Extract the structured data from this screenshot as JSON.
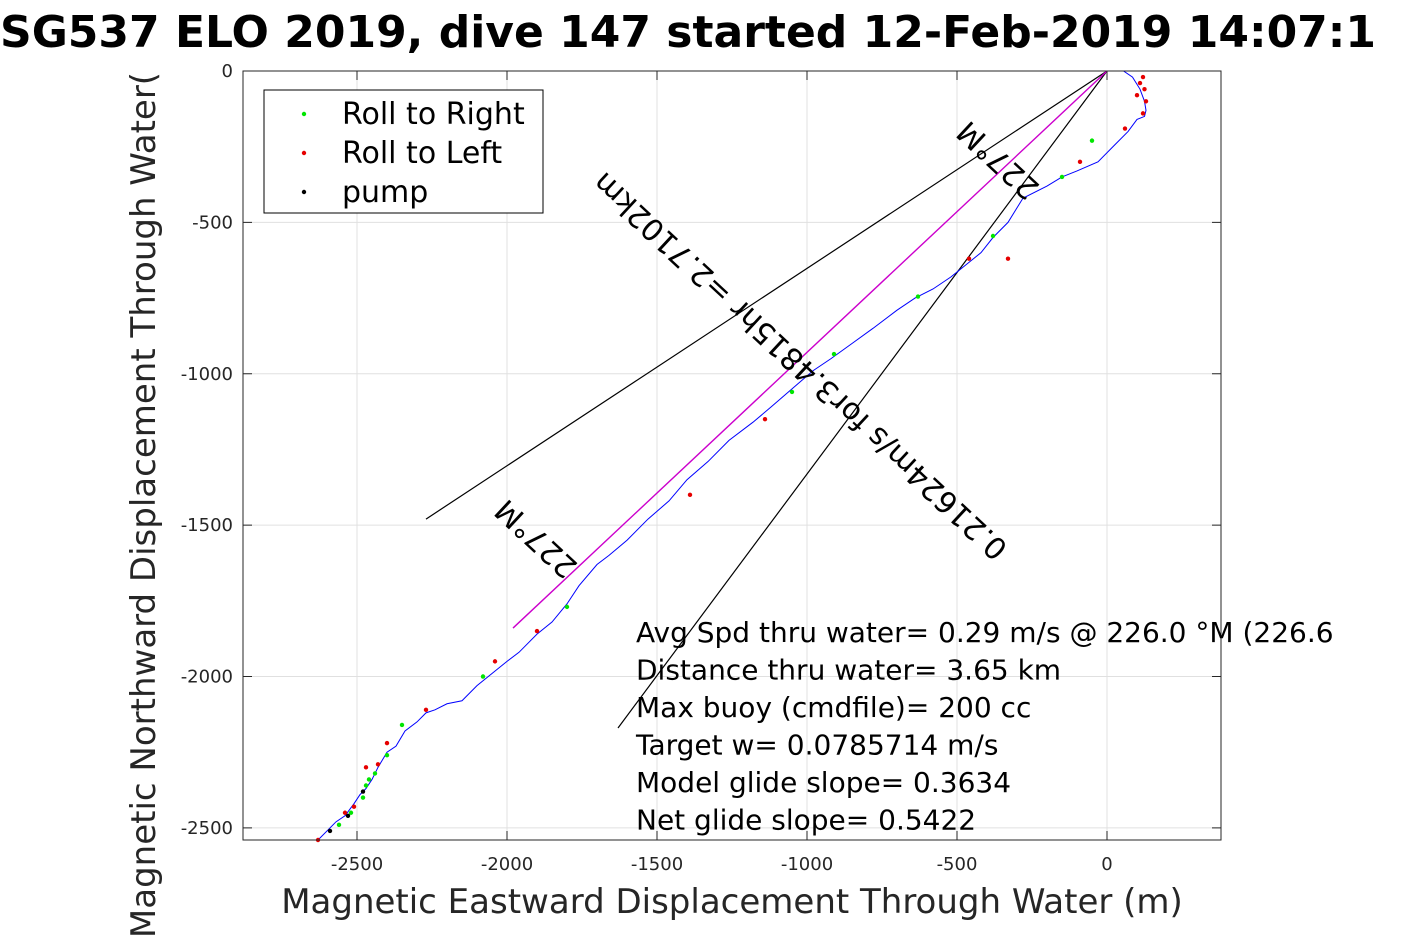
{
  "chart_data": {
    "type": "scatter",
    "title": "SG537 ELO 2019, dive 147 started 12-Feb-2019 14:07:1",
    "xlabel": "Magnetic Eastward Displacement Through Water (m)",
    "ylabel": "Magnetic Northward Displacement Through Water(",
    "xlim": [
      -2880,
      380
    ],
    "ylim": [
      -2540,
      0
    ],
    "xticks": [
      -2500,
      -2000,
      -1500,
      -1000,
      -500,
      0
    ],
    "yticks": [
      0,
      -500,
      -1000,
      -1500,
      -2000,
      -2500
    ],
    "xtick_labels": [
      "-2500",
      "-2000",
      "-1500",
      "-1000",
      "-500",
      "0"
    ],
    "ytick_labels": [
      "0",
      "-500",
      "-1000",
      "-1500",
      "-2000",
      "-2500"
    ],
    "grid": true,
    "legend_position": "top-left",
    "legend": [
      {
        "label": "Roll to Right",
        "color": "#00e600"
      },
      {
        "label": "Roll to Left",
        "color": "#e60000"
      },
      {
        "label": "pump",
        "color": "#000000"
      }
    ],
    "track": {
      "name": "track",
      "color": "#0000ff",
      "x": [
        0,
        25,
        55,
        85,
        110,
        125,
        130,
        125,
        100,
        70,
        30,
        -30,
        -100,
        -150,
        -200,
        -280,
        -330,
        -380,
        -420,
        -470,
        -520,
        -580,
        -640,
        -700,
        -780,
        -850,
        -920,
        -980,
        -1050,
        -1120,
        -1180,
        -1260,
        -1330,
        -1400,
        -1460,
        -1530,
        -1600,
        -1660,
        -1700,
        -1760,
        -1800,
        -1850,
        -1900,
        -1960,
        -2000,
        -2050,
        -2100,
        -2150,
        -2200,
        -2240,
        -2270,
        -2300,
        -2340,
        -2370,
        -2400,
        -2430,
        -2450,
        -2470,
        -2490,
        -2510,
        -2540,
        -2570,
        -2600,
        -2630
      ],
      "y": [
        0,
        0,
        0,
        -20,
        -60,
        -100,
        -130,
        -150,
        -160,
        -200,
        -240,
        -300,
        -330,
        -350,
        -380,
        -420,
        -500,
        -550,
        -600,
        -640,
        -680,
        -720,
        -750,
        -790,
        -850,
        -900,
        -950,
        -990,
        -1050,
        -1110,
        -1160,
        -1220,
        -1290,
        -1350,
        -1420,
        -1480,
        -1550,
        -1600,
        -1630,
        -1700,
        -1760,
        -1820,
        -1860,
        -1920,
        -1950,
        -1990,
        -2030,
        -2080,
        -2090,
        -2110,
        -2120,
        -2150,
        -2180,
        -2230,
        -2250,
        -2300,
        -2340,
        -2370,
        -2390,
        -2420,
        -2460,
        -2480,
        -2510,
        -2540
      ]
    },
    "roll_right": {
      "x": [
        -50,
        -150,
        -380,
        -630,
        -910,
        -1050,
        -1800,
        -2080,
        -2350,
        -2400,
        -2440,
        -2460,
        -2470,
        -2480,
        -2520,
        -2560
      ],
      "y": [
        -230,
        -350,
        -545,
        -745,
        -935,
        -1060,
        -1770,
        -2000,
        -2160,
        -2260,
        -2320,
        -2340,
        -2360,
        -2400,
        -2450,
        -2490
      ]
    },
    "roll_left": {
      "x": [
        60,
        100,
        110,
        120,
        125,
        130,
        120,
        -90,
        -330,
        -460,
        -1140,
        -1390,
        -1900,
        -2040,
        -2270,
        -2400,
        -2430,
        -2470,
        -2510,
        -2540,
        -2630
      ],
      "y": [
        -190,
        -80,
        -40,
        -20,
        -60,
        -100,
        -140,
        -300,
        -620,
        -620,
        -1150,
        -1400,
        -1850,
        -1950,
        -2110,
        -2220,
        -2290,
        -2300,
        -2430,
        -2450,
        -2540
      ]
    },
    "pump": {
      "x": [
        -2480,
        -2530,
        -2590
      ],
      "y": [
        -2380,
        -2460,
        -2510
      ]
    },
    "fan_lines": [
      {
        "color": "#000000",
        "x": [
          0,
          -2270
        ],
        "y": [
          0,
          -1480
        ]
      },
      {
        "color": "#000000",
        "x": [
          0,
          -1630
        ],
        "y": [
          0,
          -2170
        ]
      }
    ],
    "course_line": {
      "color": "#cc00cc",
      "x": [
        0,
        -1980
      ],
      "y": [
        0,
        -1840
      ]
    },
    "rotated_labels": [
      {
        "text": "227°M",
        "x": -340,
        "y": -270,
        "angle": 222.9
      },
      {
        "text": "0.21624m/s for3.4815hr =2.7102km",
        "x": -1000,
        "y": -950,
        "angle": 222.9
      },
      {
        "text": "227°M",
        "x": -1880,
        "y": -1520,
        "angle": 222.9
      }
    ],
    "annotations": [
      "Avg Spd thru water=  0.29 m/s @ 226.0 °M (226.6",
      "Distance thru water=  3.65 km",
      "Max buoy (cmdfile)= 200 cc",
      "Target w= 0.0785714 m/s",
      "Model glide slope= 0.3634",
      "Net glide slope= 0.5422"
    ]
  }
}
